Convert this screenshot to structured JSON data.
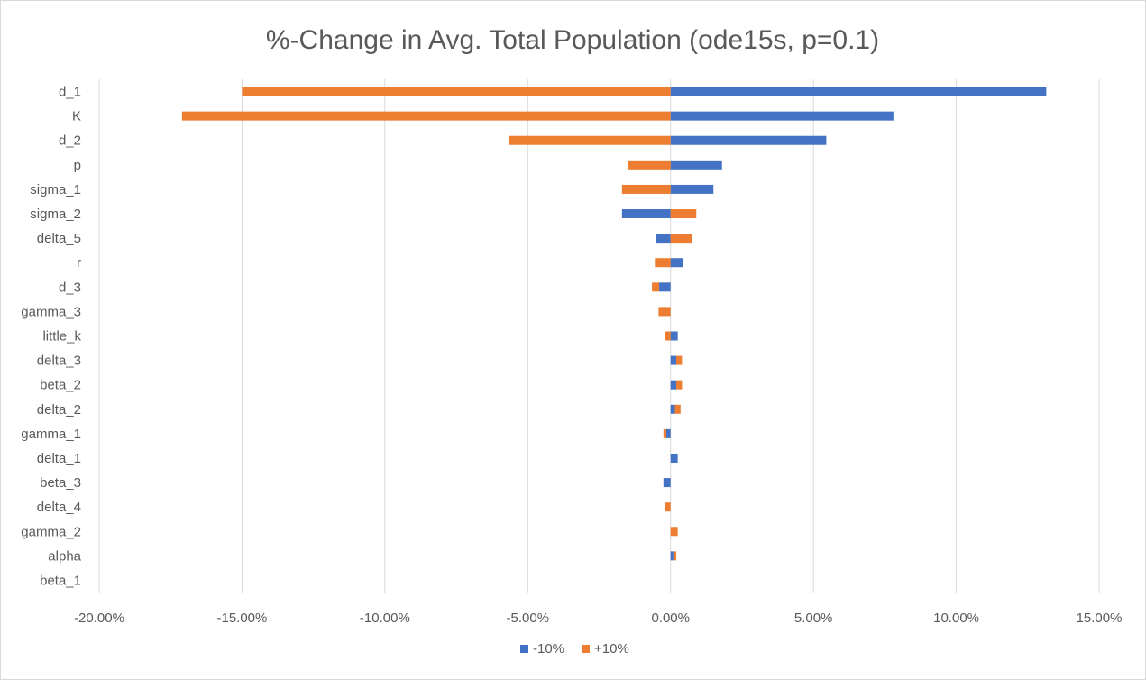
{
  "chart_data": {
    "type": "bar",
    "orientation": "horizontal",
    "stacked": true,
    "title": "%-Change in Avg. Total Population (ode15s, p=0.1)",
    "xlabel": "",
    "ylabel": "",
    "xlim": [
      -20,
      15
    ],
    "x_ticks": [
      -20,
      -15,
      -10,
      -5,
      0,
      5,
      10,
      15
    ],
    "x_tick_labels": [
      "-20.00%",
      "-15.00%",
      "-10.00%",
      "-5.00%",
      "0.00%",
      "5.00%",
      "10.00%",
      "15.00%"
    ],
    "grid": "vertical",
    "legend_position": "bottom",
    "categories": [
      "d_1",
      "K",
      "d_2",
      "p",
      "sigma_1",
      "sigma_2",
      "delta_5",
      "r",
      "d_3",
      "gamma_3",
      "little_k",
      "delta_3",
      "beta_2",
      "delta_2",
      "gamma_1",
      "delta_1",
      "beta_3",
      "delta_4",
      "gamma_2",
      "alpha",
      "beta_1"
    ],
    "series": [
      {
        "name": "-10%",
        "color": "#4472c4",
        "values": [
          13.15,
          7.8,
          5.45,
          1.8,
          1.5,
          -1.7,
          -0.5,
          0.42,
          -0.4,
          0,
          0.25,
          0.2,
          0.2,
          0.15,
          -0.15,
          0.25,
          -0.25,
          0,
          0,
          0.1,
          0
        ]
      },
      {
        "name": "+10%",
        "color": "#ed7d31",
        "values": [
          -15.0,
          -17.1,
          -5.65,
          -1.5,
          -1.7,
          0.9,
          0.75,
          -0.55,
          -0.25,
          -0.42,
          -0.2,
          0.2,
          0.2,
          0.2,
          -0.1,
          0,
          0,
          -0.2,
          0.25,
          0.1,
          0
        ]
      }
    ]
  }
}
